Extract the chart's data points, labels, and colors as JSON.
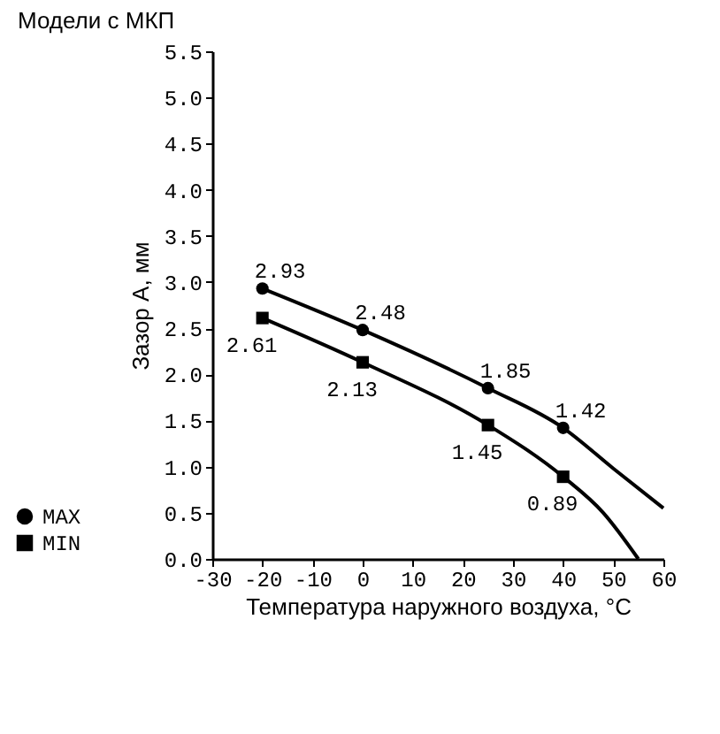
{
  "chart_data": {
    "type": "line",
    "title": "Модели с МКП",
    "xlabel": "Температура наружного воздуха, °C",
    "ylabel": "Зазор А, мм",
    "xlim": [
      -30,
      60
    ],
    "xticks": [
      -30,
      -20,
      -10,
      0,
      10,
      20,
      30,
      40,
      50,
      60
    ],
    "ylim": [
      0,
      5.5
    ],
    "yticks": [
      {
        "value": 0,
        "label": "0.0"
      },
      {
        "value": 0.5,
        "label": "0.5"
      },
      {
        "value": 1,
        "label": "1.0"
      },
      {
        "value": 1.5,
        "label": "1.5"
      },
      {
        "value": 2,
        "label": "2.0"
      },
      {
        "value": 2.5,
        "label": "2.5"
      },
      {
        "value": 3,
        "label": "3.0"
      },
      {
        "value": 3.5,
        "label": "3.5"
      },
      {
        "value": 4,
        "label": "4.0"
      },
      {
        "value": 4.5,
        "label": "4.5"
      },
      {
        "value": 5,
        "label": "5.0"
      },
      {
        "value": 5.5,
        "label": "5.5"
      }
    ],
    "grid": false,
    "legend": "bottom left",
    "series": [
      {
        "type": "line",
        "color": "#000000",
        "marker": "none",
        "x": [
          -20,
          0,
          25,
          40,
          50,
          60
        ],
        "values": [
          2.93,
          2.48,
          1.85,
          1.42,
          0.98,
          0.55
        ]
      },
      {
        "type": "line",
        "color": "#000000",
        "marker": "none",
        "x": [
          -20,
          0,
          25,
          40,
          48,
          55
        ],
        "values": [
          2.61,
          2.13,
          1.45,
          0.89,
          0.5,
          0.0
        ]
      },
      {
        "type": "scatter",
        "name": "MAX",
        "color": "#000000",
        "marker": "circle",
        "data_labels": true,
        "x": [
          -20,
          0,
          25,
          40
        ],
        "values": [
          2.93,
          2.48,
          1.85,
          1.42
        ]
      },
      {
        "type": "scatter",
        "name": "MIN",
        "color": "#000000",
        "marker": "square",
        "data_labels": true,
        "x": [
          -20,
          0,
          25,
          40
        ],
        "values": [
          2.61,
          2.13,
          1.45,
          0.89
        ]
      }
    ]
  }
}
